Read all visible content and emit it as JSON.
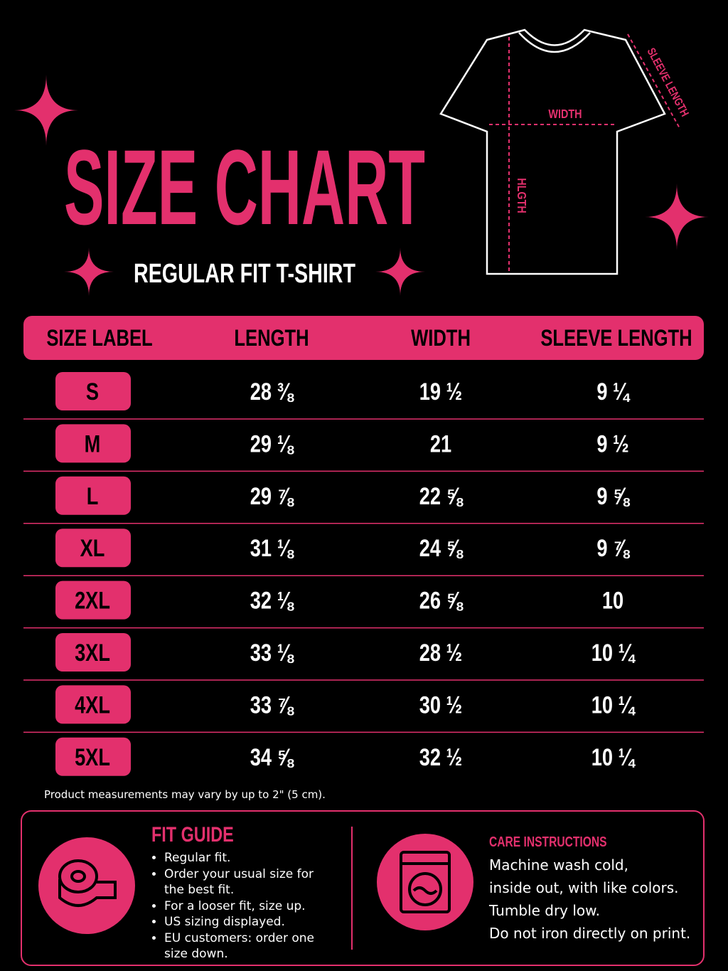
{
  "header": {
    "title": "SIZE CHART",
    "subtitle": "REGULAR FIT T-SHIRT"
  },
  "diagram": {
    "width_label": "WIDTH",
    "length_label": "HLGTH",
    "sleeve_label": "SLEEVE LENGTH"
  },
  "table": {
    "headers": [
      "SIZE LABEL",
      "LENGTH",
      "WIDTH",
      "SLEEVE LENGTH"
    ],
    "rows": [
      [
        "S",
        "28 ⅜",
        "19 ½",
        "9 ¼"
      ],
      [
        "M",
        "29 ⅛",
        "21",
        "9 ½"
      ],
      [
        "L",
        "29 ⅞",
        "22 ⅝",
        "9 ⅝"
      ],
      [
        "XL",
        "31 ⅛",
        "24 ⅝",
        "9 ⅞"
      ],
      [
        "2XL",
        "32 ⅛",
        "26 ⅝",
        "10"
      ],
      [
        "3XL",
        "33 ⅛",
        "28 ½",
        "10 ¼"
      ],
      [
        "4XL",
        "33 ⅞",
        "30 ½",
        "10 ¼"
      ],
      [
        "5XL",
        "34 ⅝",
        "32 ½",
        "10 ¼"
      ]
    ]
  },
  "note": "Product measurements may vary by up to 2\" (5 cm).",
  "fit_guide": {
    "title": "FIT GUIDE",
    "items": [
      "Regular fit.",
      "Order your usual size for the best fit.",
      "For a looser fit, size up.",
      "US sizing displayed.",
      "EU customers: order one size down."
    ]
  },
  "care": {
    "title": "CARE INSTRUCTIONS",
    "lines": [
      "Machine wash cold,",
      "inside out, with like colors.",
      "Tumble dry low.",
      "Do not iron directly on print."
    ]
  }
}
